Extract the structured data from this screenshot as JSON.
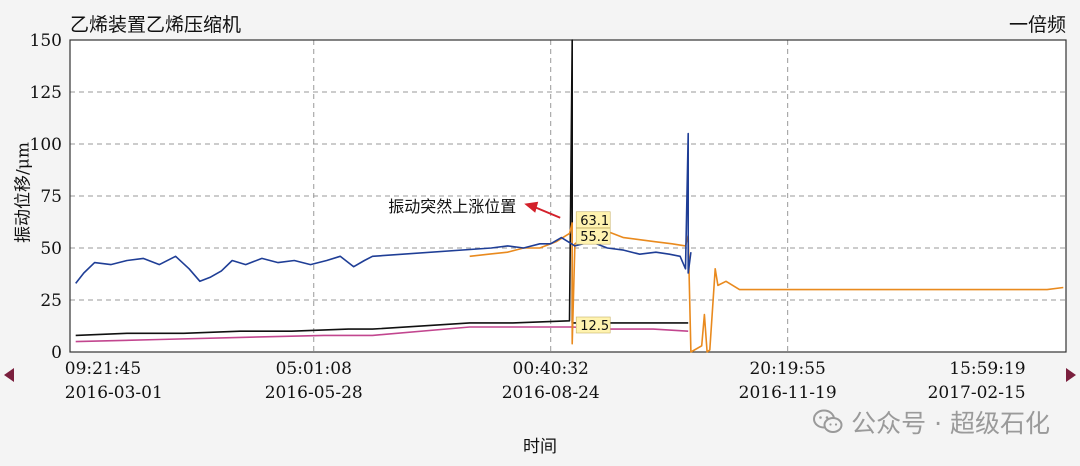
{
  "header": {
    "title": "乙烯装置乙烯压缩机",
    "mode": "一倍频"
  },
  "watermark": {
    "text": "公众号 · 超级石化"
  },
  "colors": {
    "blue": "#1f3e96",
    "orange": "#e98a1e",
    "black": "#111111",
    "magenta": "#c2468f",
    "annotation": "#d3202a",
    "label_bg": "#fff3b0"
  },
  "chart_data": {
    "type": "line",
    "title": "乙烯装置乙烯压缩机",
    "xlabel": "时间",
    "ylabel": "振动位移/μm",
    "ylim": [
      0,
      150
    ],
    "yticks": [
      0,
      25,
      50,
      75,
      100,
      125,
      150
    ],
    "xlim": [
      "2016-02-27 21:00",
      "2017-03-03 00:00"
    ],
    "grid": true,
    "xticks": [
      {
        "t": "2016-03-01 09:21",
        "time": "09:21:45",
        "date": "2016-03-01"
      },
      {
        "t": "2016-05-28 05:01",
        "time": "05:01:08",
        "date": "2016-05-28"
      },
      {
        "t": "2016-08-24 00:40",
        "time": "00:40:32",
        "date": "2016-08-24"
      },
      {
        "t": "2016-11-19 20:19",
        "time": "20:19:55",
        "date": "2016-11-19"
      },
      {
        "t": "2017-02-15 15:59",
        "time": "15:59:19",
        "date": "2017-02-15"
      }
    ],
    "series": [
      {
        "color": "blue",
        "points": [
          [
            "2016-03-01",
            33
          ],
          [
            "2016-03-04",
            38
          ],
          [
            "2016-03-08",
            43
          ],
          [
            "2016-03-14",
            42
          ],
          [
            "2016-03-20",
            44
          ],
          [
            "2016-03-26",
            45
          ],
          [
            "2016-04-01",
            42
          ],
          [
            "2016-04-07",
            46
          ],
          [
            "2016-04-12",
            40
          ],
          [
            "2016-04-16",
            34
          ],
          [
            "2016-04-20",
            36
          ],
          [
            "2016-04-24",
            39
          ],
          [
            "2016-04-28",
            44
          ],
          [
            "2016-05-03",
            42
          ],
          [
            "2016-05-09",
            45
          ],
          [
            "2016-05-15",
            43
          ],
          [
            "2016-05-21",
            44
          ],
          [
            "2016-05-27",
            42
          ],
          [
            "2016-06-02",
            44
          ],
          [
            "2016-06-07",
            46
          ],
          [
            "2016-06-12",
            41
          ],
          [
            "2016-06-16",
            44
          ],
          [
            "2016-06-19",
            46
          ],
          [
            "2016-08-02",
            50
          ],
          [
            "2016-08-08",
            51
          ],
          [
            "2016-08-14",
            50
          ],
          [
            "2016-08-20",
            52
          ],
          [
            "2016-08-24",
            52
          ],
          [
            "2016-08-28",
            55
          ],
          [
            "2016-09-02",
            51
          ],
          [
            "2016-09-08",
            53
          ],
          [
            "2016-09-14",
            50
          ],
          [
            "2016-09-20",
            49
          ],
          [
            "2016-09-26",
            47
          ],
          [
            "2016-10-02",
            48
          ],
          [
            "2016-10-07",
            47
          ],
          [
            "2016-10-11",
            46
          ],
          [
            "2016-10-13",
            40
          ],
          [
            "2016-10-14",
            105
          ],
          [
            "2016-10-14",
            38
          ],
          [
            "2016-10-15",
            48
          ]
        ]
      },
      {
        "color": "orange",
        "points": [
          [
            "2016-07-25",
            46
          ],
          [
            "2016-08-01",
            47
          ],
          [
            "2016-08-08",
            48
          ],
          [
            "2016-08-14",
            50
          ],
          [
            "2016-08-20",
            50
          ],
          [
            "2016-08-26",
            53
          ],
          [
            "2016-08-31",
            57
          ],
          [
            "2016-09-01",
            62
          ],
          [
            "2016-09-01",
            4
          ],
          [
            "2016-09-02",
            52
          ],
          [
            "2016-09-08",
            57
          ],
          [
            "2016-09-14",
            58
          ],
          [
            "2016-09-20",
            55
          ],
          [
            "2016-09-26",
            54
          ],
          [
            "2016-10-02",
            53
          ],
          [
            "2016-10-08",
            52
          ],
          [
            "2016-10-13",
            51
          ],
          [
            "2016-10-14",
            56
          ],
          [
            "2016-10-15",
            0
          ],
          [
            "2016-10-19",
            3
          ],
          [
            "2016-10-20",
            18
          ],
          [
            "2016-10-21",
            0
          ],
          [
            "2016-10-22",
            1
          ],
          [
            "2016-10-24",
            40
          ],
          [
            "2016-10-25",
            32
          ],
          [
            "2016-10-28",
            34
          ],
          [
            "2016-11-02",
            30
          ],
          [
            "2016-11-15",
            30
          ],
          [
            "2016-12-15",
            30
          ],
          [
            "2017-01-15",
            30
          ],
          [
            "2017-02-10",
            30
          ],
          [
            "2017-02-24",
            30
          ],
          [
            "2017-03-02",
            31
          ]
        ]
      },
      {
        "color": "black",
        "points": [
          [
            "2016-03-01",
            8
          ],
          [
            "2016-03-20",
            9
          ],
          [
            "2016-04-10",
            9
          ],
          [
            "2016-05-01",
            10
          ],
          [
            "2016-05-20",
            10
          ],
          [
            "2016-06-10",
            11
          ],
          [
            "2016-06-19",
            11
          ],
          [
            "2016-07-25",
            14
          ],
          [
            "2016-08-10",
            14
          ],
          [
            "2016-08-31",
            15
          ],
          [
            "2016-09-01",
            150
          ],
          [
            "2016-09-01",
            14
          ],
          [
            "2016-09-15",
            14
          ],
          [
            "2016-10-01",
            14
          ],
          [
            "2016-10-14",
            14
          ]
        ]
      },
      {
        "color": "magenta",
        "points": [
          [
            "2016-03-01",
            5
          ],
          [
            "2016-04-01",
            6
          ],
          [
            "2016-05-01",
            7
          ],
          [
            "2016-06-01",
            8
          ],
          [
            "2016-06-19",
            8
          ],
          [
            "2016-07-25",
            12
          ],
          [
            "2016-08-20",
            12
          ],
          [
            "2016-09-01",
            12
          ],
          [
            "2016-09-15",
            11
          ],
          [
            "2016-10-01",
            11
          ],
          [
            "2016-10-14",
            10
          ]
        ]
      }
    ],
    "data_labels": [
      {
        "x": "2016-09-01",
        "y": 63.1,
        "text": "63.1"
      },
      {
        "x": "2016-09-01",
        "y": 55.2,
        "text": "55.2"
      },
      {
        "x": "2016-09-01",
        "y": 12.5,
        "text": "12.5"
      }
    ],
    "annotation": {
      "text": "振动突然上涨位置",
      "x": "2016-09-01",
      "y": 63.1
    }
  }
}
